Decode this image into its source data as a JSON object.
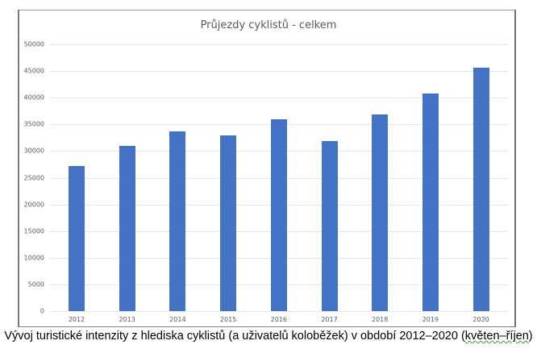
{
  "chart_data": {
    "type": "bar",
    "title": "Průjezdy cyklistů - celkem",
    "xlabel": "",
    "ylabel": "",
    "categories": [
      "2012",
      "2013",
      "2014",
      "2015",
      "2016",
      "2017",
      "2018",
      "2019",
      "2020"
    ],
    "values": [
      27200,
      31000,
      33700,
      33000,
      36000,
      31800,
      36800,
      40800,
      45600
    ],
    "yticks": [
      0,
      5000,
      10000,
      15000,
      20000,
      25000,
      30000,
      35000,
      40000,
      45000,
      50000
    ],
    "ylim": [
      0,
      50000
    ],
    "grid": true,
    "legend": null,
    "bar_color": "#4472c4"
  },
  "caption": {
    "text": "Vývoj turistické intenzity z hlediska cyklistů (a uživatelů koloběžek) v období 2012–2020 (",
    "underlined": "květen–říjen",
    "close": ")"
  }
}
